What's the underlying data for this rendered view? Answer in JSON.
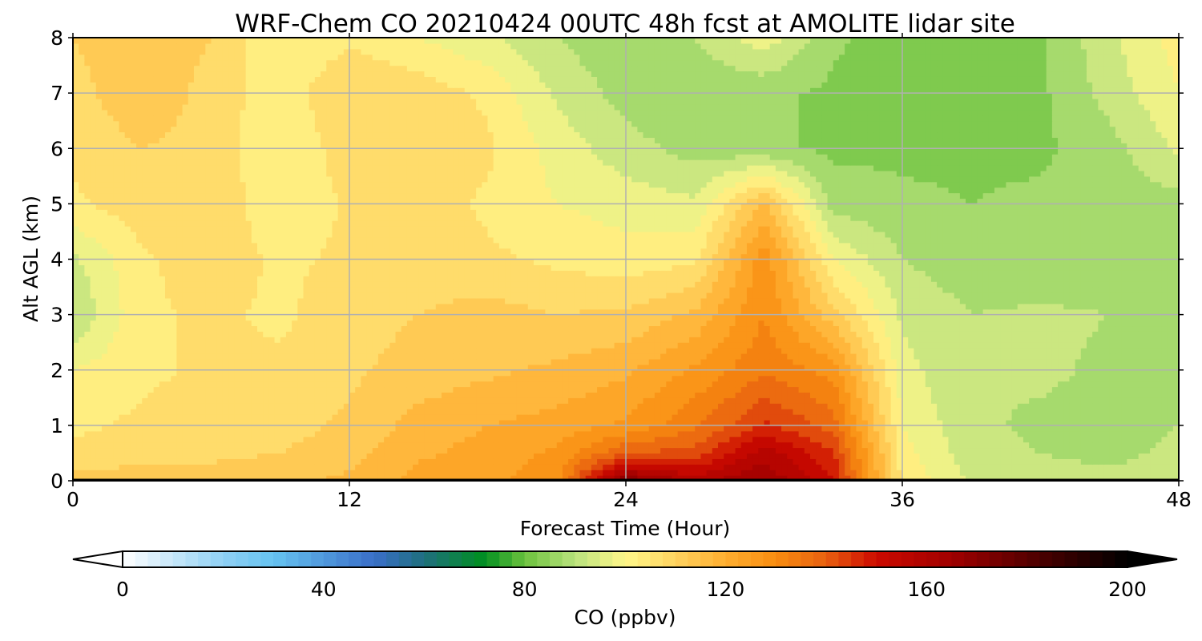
{
  "chart_data": {
    "type": "heatmap",
    "title": "WRF-Chem CO  20210424 00UTC 48h fcst at AMOLITE lidar site",
    "xlabel": "Forecast Time (Hour)",
    "ylabel": "Alt AGL (km)",
    "xlim": [
      0,
      48
    ],
    "ylim": [
      0,
      8
    ],
    "x_ticks": [
      "0",
      "12",
      "24",
      "36",
      "48"
    ],
    "y_ticks": [
      "0",
      "1",
      "2",
      "3",
      "4",
      "5",
      "6",
      "7",
      "8"
    ],
    "grid": true,
    "colorbar": {
      "label": "CO  (ppbv)",
      "range": [
        0,
        200
      ],
      "ticks": [
        "0",
        "40",
        "80",
        "120",
        "160",
        "200"
      ],
      "extend": "both",
      "stops": [
        {
          "v": 0,
          "color": "#ffffff"
        },
        {
          "v": 20,
          "color": "#8fd0f4"
        },
        {
          "v": 30,
          "color": "#66c3f0"
        },
        {
          "v": 50,
          "color": "#3a6fc9"
        },
        {
          "v": 60,
          "color": "#1f6f7e"
        },
        {
          "v": 72,
          "color": "#008f20"
        },
        {
          "v": 80,
          "color": "#6cc23e"
        },
        {
          "v": 90,
          "color": "#b9e27d"
        },
        {
          "v": 100,
          "color": "#fff78a"
        },
        {
          "v": 110,
          "color": "#ffd360"
        },
        {
          "v": 120,
          "color": "#ffae30"
        },
        {
          "v": 130,
          "color": "#f88d10"
        },
        {
          "v": 140,
          "color": "#e86010"
        },
        {
          "v": 150,
          "color": "#cc0a00"
        },
        {
          "v": 165,
          "color": "#a00000"
        },
        {
          "v": 185,
          "color": "#400000"
        },
        {
          "v": 200,
          "color": "#000000"
        }
      ]
    },
    "hours": [
      0,
      3,
      6,
      9,
      12,
      15,
      18,
      21,
      24,
      27,
      30,
      33,
      36,
      39,
      42,
      45,
      48
    ],
    "altitudes_km": [
      0,
      0.5,
      1,
      2,
      3,
      4,
      5,
      6,
      7,
      8
    ],
    "co_ppbv": [
      [
        112,
        113,
        112,
        114,
        116,
        122,
        124,
        128,
        170,
        158,
        165,
        150,
        104,
        94,
        92,
        91,
        92
      ],
      [
        106,
        108,
        109,
        110,
        113,
        119,
        122,
        126,
        140,
        142,
        158,
        146,
        102,
        92,
        90,
        89,
        91
      ],
      [
        104,
        106,
        107,
        108,
        111,
        117,
        120,
        122,
        126,
        134,
        146,
        138,
        100,
        91,
        89,
        88,
        90
      ],
      [
        100,
        104,
        106,
        106,
        109,
        112,
        114,
        116,
        119,
        126,
        134,
        128,
        97,
        90,
        91,
        89,
        90
      ],
      [
        90,
        104,
        106,
        104,
        108,
        110,
        112,
        110,
        111,
        116,
        130,
        112,
        94,
        90,
        91,
        90,
        90
      ],
      [
        94,
        104,
        108,
        104,
        106,
        108,
        106,
        104,
        102,
        104,
        128,
        100,
        90,
        87,
        86,
        87,
        88
      ],
      [
        104,
        108,
        110,
        100,
        106,
        108,
        104,
        100,
        98,
        96,
        116,
        88,
        86,
        85,
        86,
        87,
        88
      ],
      [
        106,
        110,
        108,
        100,
        108,
        108,
        106,
        98,
        92,
        88,
        86,
        84,
        84,
        84,
        84,
        88,
        96
      ],
      [
        108,
        114,
        108,
        102,
        110,
        108,
        104,
        94,
        88,
        86,
        86,
        84,
        82,
        82,
        84,
        92,
        100
      ],
      [
        110,
        114,
        110,
        100,
        104,
        100,
        96,
        90,
        86,
        90,
        98,
        86,
        82,
        82,
        84,
        94,
        102
      ]
    ]
  }
}
